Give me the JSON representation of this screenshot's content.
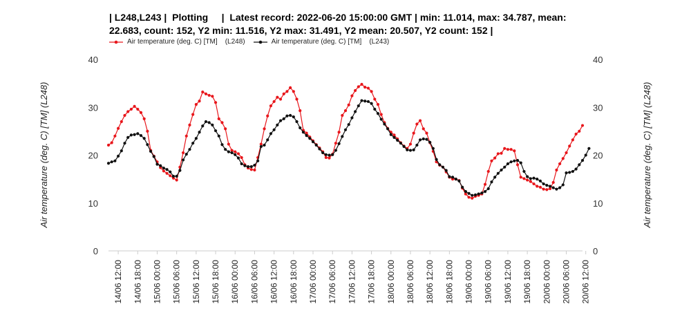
{
  "chart_data": {
    "type": "line",
    "title": "| L248,L243 |  Plotting     |  Latest record: 2022-06-20 15:00:00 GMT | min: 11.014, max: 34.787, mean: 22.683, count: 152, Y2 min: 11.516, Y2 max: 31.491, Y2 mean: 20.507, Y2 count: 152 |",
    "ylabel": "Air temperature (deg. C) [TM]   (L248)",
    "y2label": "Air temperature (deg. C) [TM]   (L248)",
    "ylim": [
      0,
      40
    ],
    "yticks": [
      0,
      10,
      20,
      30,
      40
    ],
    "grid": false,
    "legend_position": "top-left",
    "x_start": "14/06 09:00",
    "x_step_hours": 1,
    "x_end": "20/06 15:00",
    "xticks": [
      "14/06 12:00",
      "14/06 18:00",
      "15/06 00:00",
      "15/06 06:00",
      "15/06 12:00",
      "15/06 18:00",
      "16/06 00:00",
      "16/06 06:00",
      "16/06 12:00",
      "16/06 18:00",
      "17/06 00:00",
      "17/06 06:00",
      "17/06 12:00",
      "17/06 18:00",
      "18/06 00:00",
      "18/06 06:00",
      "18/06 12:00",
      "18/06 18:00",
      "19/06 00:00",
      "19/06 06:00",
      "19/06 12:00",
      "19/06 18:00",
      "20/06 00:00",
      "20/06 06:00",
      "20/06 12:00"
    ],
    "series": [
      {
        "name": "Air temperature (deg. C) [TM]    (L248)",
        "color": "#e8161b",
        "values": [
          22.1,
          22.6,
          24.0,
          25.6,
          27.0,
          28.3,
          29.1,
          29.6,
          30.2,
          29.6,
          28.9,
          27.6,
          25.0,
          21.0,
          19.8,
          18.6,
          17.4,
          16.7,
          16.2,
          15.7,
          15.2,
          14.8,
          17.5,
          20.5,
          24.0,
          26.3,
          28.5,
          30.6,
          31.3,
          33.2,
          32.8,
          32.5,
          32.3,
          31.0,
          27.6,
          26.8,
          25.5,
          22.3,
          21.0,
          20.7,
          20.3,
          19.5,
          18.0,
          17.3,
          17.0,
          16.9,
          19.5,
          22.3,
          25.5,
          28.2,
          30.3,
          31.2,
          32.1,
          31.7,
          32.8,
          33.3,
          34.1,
          33.3,
          31.7,
          29.3,
          25.2,
          24.6,
          23.8,
          23.0,
          22.2,
          21.5,
          20.7,
          19.5,
          19.4,
          20.2,
          22.5,
          24.8,
          28.3,
          29.3,
          30.5,
          32.4,
          33.5,
          34.3,
          34.8,
          34.2,
          34.0,
          33.3,
          31.7,
          30.6,
          28.5,
          26.8,
          25.6,
          24.8,
          24.2,
          23.4,
          22.6,
          21.9,
          21.4,
          22.3,
          24.6,
          26.5,
          27.2,
          25.5,
          24.6,
          22.6,
          20.8,
          18.6,
          17.9,
          17.5,
          16.5,
          15.4,
          15.0,
          15.0,
          14.7,
          13.1,
          11.9,
          11.2,
          11.0,
          11.4,
          11.6,
          11.9,
          13.9,
          16.6,
          18.8,
          19.4,
          20.3,
          20.4,
          21.4,
          21.2,
          21.2,
          20.9,
          18.0,
          15.4,
          15.1,
          14.8,
          14.5,
          14.0,
          13.5,
          13.3,
          12.9,
          12.8,
          13.0,
          14.3,
          16.9,
          18.2,
          19.3,
          20.5,
          21.9,
          23.2,
          24.4,
          25.0,
          26.2
        ]
      },
      {
        "name": "Air temperature (deg. C) [TM]    (L243)",
        "color": "#111111",
        "values": [
          18.3,
          18.6,
          18.8,
          19.8,
          20.9,
          22.5,
          23.7,
          24.2,
          24.3,
          24.5,
          24.1,
          23.5,
          22.2,
          20.8,
          19.7,
          18.1,
          17.8,
          17.3,
          17.0,
          16.5,
          15.6,
          15.6,
          16.8,
          19.0,
          20.2,
          21.2,
          22.5,
          23.5,
          24.8,
          26.1,
          27.0,
          26.8,
          26.3,
          25.1,
          24.0,
          22.2,
          21.2,
          20.7,
          20.5,
          20.1,
          19.4,
          18.2,
          17.8,
          17.6,
          17.6,
          17.9,
          18.8,
          21.8,
          22.1,
          23.2,
          24.5,
          25.3,
          26.3,
          27.2,
          27.6,
          28.2,
          28.3,
          28.0,
          27.0,
          25.7,
          24.8,
          24.1,
          23.5,
          22.8,
          22.1,
          21.3,
          20.5,
          20.1,
          20.0,
          20.1,
          21.0,
          22.4,
          23.9,
          25.3,
          26.4,
          27.8,
          29.1,
          30.3,
          31.4,
          31.3,
          31.2,
          30.8,
          29.6,
          28.7,
          27.5,
          26.5,
          25.5,
          24.3,
          23.7,
          23.1,
          22.5,
          21.8,
          21.1,
          21.0,
          21.1,
          22.1,
          23.2,
          23.4,
          23.3,
          22.7,
          21.4,
          19.1,
          18.0,
          17.5,
          16.8,
          15.5,
          15.4,
          15.0,
          14.6,
          13.3,
          12.4,
          12.0,
          11.6,
          11.7,
          11.9,
          12.1,
          12.4,
          13.0,
          14.4,
          15.4,
          16.2,
          16.9,
          17.5,
          18.2,
          18.6,
          18.8,
          18.9,
          18.4,
          16.6,
          15.5,
          15.1,
          15.2,
          15.0,
          14.6,
          14.0,
          13.7,
          13.5,
          13.2,
          12.9,
          13.2,
          13.8,
          16.3,
          16.4,
          16.6,
          17.1,
          18.0,
          18.9,
          20.0,
          21.4
        ]
      }
    ]
  }
}
